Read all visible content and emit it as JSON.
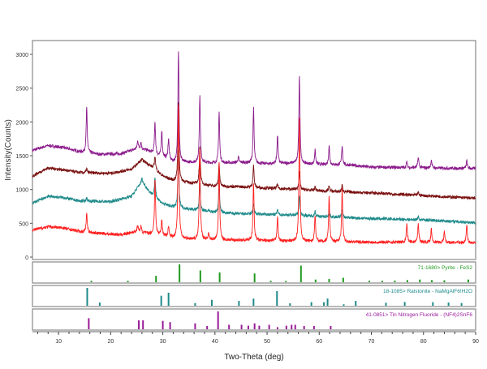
{
  "chart_data": {
    "type": "line",
    "xlabel": "Two-Theta (deg)",
    "ylabel": "Intensity(Counts)",
    "xlim": [
      5,
      90
    ],
    "ylim": [
      0,
      3250
    ],
    "xticks": [
      10,
      20,
      30,
      40,
      50,
      60,
      70,
      80,
      90
    ],
    "yticks": [
      0,
      500,
      1000,
      1500,
      2000,
      2500,
      3000
    ],
    "grid": false,
    "series": [
      {
        "color": "#8b1a8b",
        "baseline": [
          [
            5,
            1580
          ],
          [
            8,
            1650
          ],
          [
            11,
            1620
          ],
          [
            14,
            1560
          ],
          [
            18,
            1520
          ],
          [
            22,
            1530
          ],
          [
            25,
            1600
          ],
          [
            27,
            1580
          ],
          [
            29,
            1500
          ],
          [
            31,
            1460
          ],
          [
            32,
            1400
          ],
          [
            36,
            1400
          ],
          [
            40,
            1390
          ],
          [
            45,
            1400
          ],
          [
            50,
            1380
          ],
          [
            55,
            1390
          ],
          [
            60,
            1370
          ],
          [
            66,
            1360
          ],
          [
            70,
            1330
          ],
          [
            80,
            1320
          ],
          [
            90,
            1310
          ]
        ],
        "peaks": [
          [
            15.4,
            2200
          ],
          [
            25.2,
            1720
          ],
          [
            25.8,
            1700
          ],
          [
            28.5,
            2000
          ],
          [
            29.8,
            1870
          ],
          [
            31.1,
            1750
          ],
          [
            33.0,
            3050
          ],
          [
            37.1,
            2400
          ],
          [
            40.8,
            2150
          ],
          [
            44.5,
            1480
          ],
          [
            47.4,
            2200
          ],
          [
            52.0,
            1800
          ],
          [
            56.2,
            2690
          ],
          [
            59.2,
            1580
          ],
          [
            61.9,
            1650
          ],
          [
            64.4,
            1650
          ],
          [
            76.8,
            1410
          ],
          [
            79.0,
            1480
          ],
          [
            81.5,
            1440
          ],
          [
            88.3,
            1430
          ]
        ]
      },
      {
        "color": "#7a1010",
        "baseline": [
          [
            5,
            1200
          ],
          [
            8,
            1320
          ],
          [
            11,
            1290
          ],
          [
            14,
            1250
          ],
          [
            20,
            1240
          ],
          [
            24,
            1300
          ],
          [
            26,
            1440
          ],
          [
            28,
            1330
          ],
          [
            30,
            1200
          ],
          [
            32,
            1130
          ],
          [
            36,
            1090
          ],
          [
            40,
            1050
          ],
          [
            45,
            1040
          ],
          [
            50,
            1020
          ],
          [
            56,
            1000
          ],
          [
            60,
            980
          ],
          [
            70,
            950
          ],
          [
            80,
            910
          ],
          [
            90,
            870
          ]
        ],
        "peaks": [
          [
            15.4,
            1310
          ],
          [
            28.5,
            1500
          ],
          [
            33.0,
            2300
          ],
          [
            37.1,
            1650
          ],
          [
            40.8,
            1400
          ],
          [
            47.4,
            1360
          ],
          [
            52.0,
            1080
          ],
          [
            56.2,
            1280
          ],
          [
            59.2,
            1040
          ],
          [
            61.9,
            1060
          ],
          [
            64.4,
            1060
          ],
          [
            79.0,
            960
          ]
        ]
      },
      {
        "color": "#1f8a8a",
        "baseline": [
          [
            5,
            800
          ],
          [
            8,
            900
          ],
          [
            11,
            880
          ],
          [
            14,
            830
          ],
          [
            20,
            820
          ],
          [
            24,
            900
          ],
          [
            26,
            1120
          ],
          [
            27.5,
            960
          ],
          [
            30,
            790
          ],
          [
            32,
            740
          ],
          [
            36,
            700
          ],
          [
            40,
            660
          ],
          [
            45,
            640
          ],
          [
            50,
            630
          ],
          [
            56,
            620
          ],
          [
            60,
            600
          ],
          [
            70,
            570
          ],
          [
            80,
            550
          ],
          [
            90,
            510
          ]
        ],
        "peaks": [
          [
            15.4,
            880
          ],
          [
            26.0,
            1160
          ],
          [
            28.5,
            1180
          ],
          [
            33.0,
            1600
          ],
          [
            37.1,
            1100
          ],
          [
            38.8,
            700
          ],
          [
            40.8,
            1100
          ],
          [
            47.4,
            800
          ],
          [
            52.0,
            700
          ],
          [
            56.2,
            920
          ],
          [
            59.2,
            680
          ],
          [
            61.9,
            700
          ],
          [
            64.4,
            710
          ],
          [
            79.0,
            600
          ]
        ]
      },
      {
        "color": "#ff2020",
        "baseline": [
          [
            5,
            400
          ],
          [
            8,
            450
          ],
          [
            11,
            430
          ],
          [
            14,
            380
          ],
          [
            18,
            350
          ],
          [
            22,
            330
          ],
          [
            25,
            380
          ],
          [
            27,
            350
          ],
          [
            30,
            320
          ],
          [
            32,
            280
          ],
          [
            36,
            260
          ],
          [
            40,
            250
          ],
          [
            45,
            250
          ],
          [
            50,
            240
          ],
          [
            56,
            230
          ],
          [
            60,
            230
          ],
          [
            70,
            220
          ],
          [
            80,
            220
          ],
          [
            90,
            210
          ]
        ],
        "peaks": [
          [
            15.4,
            650
          ],
          [
            25.2,
            470
          ],
          [
            25.8,
            450
          ],
          [
            28.5,
            1170
          ],
          [
            29.8,
            550
          ],
          [
            31.1,
            450
          ],
          [
            33.0,
            2250
          ],
          [
            37.1,
            1620
          ],
          [
            38.8,
            360
          ],
          [
            40.8,
            1400
          ],
          [
            47.4,
            1100
          ],
          [
            52.0,
            600
          ],
          [
            56.2,
            2080
          ],
          [
            59.2,
            620
          ],
          [
            61.9,
            900
          ],
          [
            64.4,
            1000
          ],
          [
            76.8,
            500
          ],
          [
            79.0,
            500
          ],
          [
            81.5,
            420
          ],
          [
            84.0,
            380
          ],
          [
            88.3,
            480
          ]
        ]
      }
    ],
    "reference_patterns": [
      {
        "label": "71-1680> Pyrite - FeS2",
        "color": "#1f9a1f",
        "sticks": [
          [
            16.3,
            8
          ],
          [
            23.3,
            8
          ],
          [
            28.7,
            36
          ],
          [
            33.2,
            100
          ],
          [
            37.2,
            66
          ],
          [
            40.9,
            55
          ],
          [
            47.6,
            49
          ],
          [
            50.7,
            8
          ],
          [
            53.6,
            7
          ],
          [
            56.5,
            93
          ],
          [
            59.3,
            15
          ],
          [
            61.9,
            18
          ],
          [
            64.6,
            25
          ],
          [
            69.6,
            8
          ],
          [
            72.1,
            8
          ],
          [
            74.5,
            9
          ],
          [
            76.9,
            12
          ],
          [
            79.3,
            15
          ],
          [
            81.6,
            12
          ],
          [
            84.0,
            11
          ],
          [
            88.6,
            15
          ]
        ]
      },
      {
        "label": "18-1085> Ralstonite - NaMgAlF6!H2O",
        "color": "#1f8a8a",
        "sticks": [
          [
            15.5,
            100
          ],
          [
            17.9,
            18
          ],
          [
            29.7,
            56
          ],
          [
            31.1,
            73
          ],
          [
            36.2,
            15
          ],
          [
            39.4,
            33
          ],
          [
            44.6,
            27
          ],
          [
            47.4,
            40
          ],
          [
            51.9,
            82
          ],
          [
            54.4,
            14
          ],
          [
            58.5,
            20
          ],
          [
            60.9,
            20
          ],
          [
            61.6,
            40
          ],
          [
            64.7,
            8
          ],
          [
            67.0,
            27
          ],
          [
            72.8,
            17
          ],
          [
            76.4,
            21
          ],
          [
            81.8,
            20
          ],
          [
            84.8,
            18
          ],
          [
            87.3,
            15
          ]
        ]
      },
      {
        "label": "41-0851> Tin Nitrogen Fluoride - (NF4)2SnF6",
        "color": "#9a1a9a",
        "sticks": [
          [
            15.8,
            62
          ],
          [
            25.4,
            50
          ],
          [
            26.2,
            50
          ],
          [
            30.0,
            47
          ],
          [
            31.4,
            40
          ],
          [
            36.2,
            33
          ],
          [
            38.5,
            18
          ],
          [
            40.6,
            100
          ],
          [
            42.7,
            25
          ],
          [
            45.1,
            25
          ],
          [
            46.4,
            20
          ],
          [
            47.6,
            33
          ],
          [
            48.5,
            20
          ],
          [
            50.4,
            25
          ],
          [
            52.0,
            12
          ],
          [
            53.7,
            20
          ],
          [
            54.7,
            25
          ],
          [
            55.4,
            25
          ],
          [
            57.1,
            18
          ],
          [
            59.0,
            18
          ],
          [
            62.2,
            18
          ]
        ]
      }
    ]
  }
}
